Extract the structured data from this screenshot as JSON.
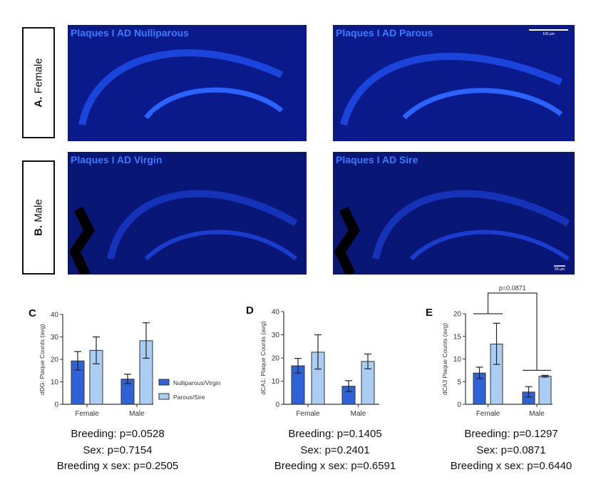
{
  "side_labels": [
    {
      "letter": "A.",
      "text": " Female"
    },
    {
      "letter": "B.",
      "text": " Male"
    }
  ],
  "images": [
    {
      "title": "Plaques I AD Nulliparous"
    },
    {
      "title": "Plaques I AD Parous",
      "scale_bar": "100 µm"
    },
    {
      "title": "Plaques I AD Virgin"
    },
    {
      "title": "Plaques I AD Sire",
      "scale_bar": "50 µm"
    }
  ],
  "colors": {
    "nulliparous_virgin": "#2f62d6",
    "parous_sire": "#a9cdf3",
    "tissue": "#0a1a8a",
    "title": "#3a7bff"
  },
  "legend": [
    "Nulliparous/Virgin",
    "Parous/Sire"
  ],
  "chart_data": [
    {
      "type": "bar",
      "panel": "C",
      "ylabel": "dDG: Plaque Counts (avg)",
      "categories": [
        "Female",
        "Male"
      ],
      "ylim": [
        0,
        40
      ],
      "yticks": [
        0,
        10,
        20,
        30,
        40
      ],
      "series": [
        {
          "name": "Nulliparous/Virgin",
          "values": [
            19.3,
            11.2
          ],
          "error_low": [
            15.3,
            9.2
          ],
          "error_high": [
            23.5,
            13.4
          ]
        },
        {
          "name": "Parous/Sire",
          "values": [
            24.0,
            28.3
          ],
          "error_low": [
            18.0,
            20.5
          ],
          "error_high": [
            30.0,
            36.3
          ]
        }
      ],
      "stats": [
        "Breeding: p=0.0528",
        "Sex: p=0.7154",
        "Breeding x sex: p=0.2505"
      ]
    },
    {
      "type": "bar",
      "panel": "D",
      "ylabel": "dCA1: Plaque Counts (avg)",
      "categories": [
        "Female",
        "Male"
      ],
      "ylim": [
        0,
        40
      ],
      "yticks": [
        0,
        10,
        20,
        30,
        40
      ],
      "series": [
        {
          "name": "Nulliparous/Virgin",
          "values": [
            16.6,
            7.8
          ],
          "error_low": [
            13.5,
            5.5
          ],
          "error_high": [
            19.8,
            10.2
          ]
        },
        {
          "name": "Parous/Sire",
          "values": [
            22.5,
            18.5
          ],
          "error_low": [
            15.2,
            15.3
          ],
          "error_high": [
            30.0,
            21.7
          ]
        }
      ],
      "stats": [
        "Breeding: p=0.1405",
        "Sex: p=0.2401",
        "Breeding x sex: p=0.6591"
      ]
    },
    {
      "type": "bar",
      "panel": "E",
      "ylabel": "dCA3 Plaque Counts (avg)",
      "categories": [
        "Female",
        "Male"
      ],
      "ylim": [
        0,
        20
      ],
      "yticks": [
        0,
        5,
        10,
        15,
        20
      ],
      "series": [
        {
          "name": "Nulliparous/Virgin",
          "values": [
            6.9,
            2.7
          ],
          "error_low": [
            5.7,
            1.6
          ],
          "error_high": [
            8.2,
            3.9
          ]
        },
        {
          "name": "Parous/Sire",
          "values": [
            13.3,
            6.2
          ],
          "error_low": [
            8.8,
            6.0
          ],
          "error_high": [
            17.9,
            6.4
          ]
        }
      ],
      "annotation": "p=0.0871",
      "stats": [
        "Breeding: p=0.1297",
        "Sex: p=0.0871",
        "Breeding x sex: p=0.6440"
      ]
    }
  ]
}
